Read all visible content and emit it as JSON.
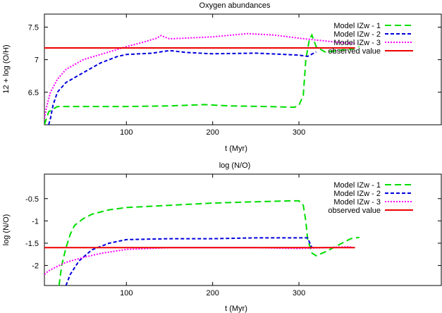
{
  "chart_data": [
    {
      "type": "line",
      "title": "Oxygen abundances",
      "xlabel": "t (Myr)",
      "ylabel": "12 + log (O/H)",
      "xlim": [
        5,
        465
      ],
      "ylim": [
        6.0,
        7.7
      ],
      "xticks": [
        100,
        200,
        300
      ],
      "yticks": [
        6.5,
        7.0,
        7.5
      ],
      "ytick_labels": [
        "6.5",
        "7",
        "7.5"
      ],
      "legend_position": "top-right",
      "series": [
        {
          "name": "Model IZw - 1",
          "color": "#00dd00",
          "dash": "dashed",
          "x": [
            5,
            10,
            20,
            50,
            100,
            150,
            190,
            220,
            260,
            295,
            300,
            305,
            308,
            312,
            315,
            320,
            330,
            340,
            350,
            360,
            370
          ],
          "y": [
            6.0,
            6.2,
            6.28,
            6.28,
            6.28,
            6.29,
            6.31,
            6.29,
            6.28,
            6.27,
            6.3,
            6.45,
            7.0,
            7.3,
            7.38,
            7.2,
            7.12,
            7.13,
            7.15,
            7.16,
            7.2
          ]
        },
        {
          "name": "Model IZw - 2",
          "color": "#0000dd",
          "dash": "dotted-dash",
          "x": [
            10,
            12,
            15,
            20,
            30,
            50,
            70,
            90,
            100,
            130,
            150,
            170,
            200,
            250,
            300,
            310,
            320
          ],
          "y": [
            6.0,
            6.1,
            6.3,
            6.5,
            6.65,
            6.8,
            6.95,
            7.05,
            7.08,
            7.1,
            7.14,
            7.11,
            7.09,
            7.1,
            7.07,
            7.05,
            7.12
          ]
        },
        {
          "name": "Model IZw - 3",
          "color": "#ff00ff",
          "dash": "dotted",
          "x": [
            5,
            8,
            12,
            20,
            30,
            50,
            80,
            100,
            120,
            135,
            140,
            150,
            200,
            240,
            270,
            300,
            350,
            365
          ],
          "y": [
            6.1,
            6.3,
            6.5,
            6.7,
            6.85,
            7.0,
            7.12,
            7.2,
            7.27,
            7.33,
            7.37,
            7.32,
            7.35,
            7.4,
            7.38,
            7.33,
            7.26,
            7.25
          ]
        },
        {
          "name": "observed value",
          "color": "#ee0000",
          "dash": "solid",
          "x": [
            5,
            365
          ],
          "y": [
            7.18,
            7.18
          ]
        }
      ]
    },
    {
      "type": "line",
      "title": "log (N/O)",
      "xlabel": "t (Myr)",
      "ylabel": "log (N/O)",
      "xlim": [
        5,
        465
      ],
      "ylim": [
        -2.45,
        0.05
      ],
      "xticks": [
        100,
        200,
        300
      ],
      "yticks": [
        -2.0,
        -1.5,
        -1.0,
        -0.5
      ],
      "ytick_labels": [
        "-2",
        "-1.5",
        "-1",
        "-0.5"
      ],
      "legend_position": "top-right",
      "series": [
        {
          "name": "Model IZw - 1",
          "color": "#00dd00",
          "dash": "dashed",
          "x": [
            22,
            25,
            30,
            35,
            40,
            50,
            60,
            80,
            100,
            150,
            200,
            250,
            290,
            300,
            305,
            308,
            310,
            315,
            320,
            330,
            345,
            360,
            370
          ],
          "y": [
            -2.45,
            -2.0,
            -1.6,
            -1.3,
            -1.1,
            -0.95,
            -0.85,
            -0.75,
            -0.7,
            -0.65,
            -0.6,
            -0.57,
            -0.55,
            -0.55,
            -0.65,
            -1.0,
            -1.4,
            -1.72,
            -1.78,
            -1.7,
            -1.55,
            -1.4,
            -1.37
          ]
        },
        {
          "name": "Model IZw - 2",
          "color": "#0000dd",
          "dash": "dotted-dash",
          "x": [
            30,
            35,
            45,
            60,
            80,
            100,
            150,
            200,
            250,
            300,
            310,
            315
          ],
          "y": [
            -2.45,
            -2.2,
            -1.9,
            -1.65,
            -1.5,
            -1.42,
            -1.4,
            -1.4,
            -1.38,
            -1.38,
            -1.38,
            -1.6
          ]
        },
        {
          "name": "Model IZw - 3",
          "color": "#ff00ff",
          "dash": "dotted",
          "x": [
            5,
            10,
            20,
            30,
            50,
            70,
            100,
            150,
            200,
            250,
            300,
            330,
            360
          ],
          "y": [
            -2.2,
            -2.12,
            -2.02,
            -1.93,
            -1.82,
            -1.73,
            -1.64,
            -1.6,
            -1.6,
            -1.6,
            -1.62,
            -1.6,
            -1.58
          ]
        },
        {
          "name": "observed value",
          "color": "#ee0000",
          "dash": "solid",
          "x": [
            5,
            365
          ],
          "y": [
            -1.6,
            -1.6
          ]
        }
      ]
    }
  ]
}
